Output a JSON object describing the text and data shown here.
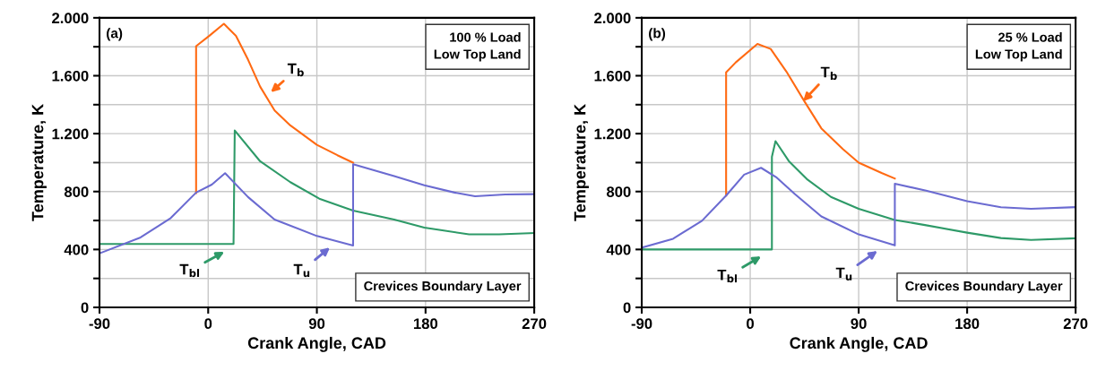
{
  "chart_data": [
    {
      "type": "line",
      "xlabel": "Crank Angle, CAD",
      "ylabel": "Temperature, K",
      "grid": true,
      "legend": false,
      "marker": "none",
      "line_style": "solid",
      "xlim": [
        -90,
        270
      ],
      "xticks": [
        -90,
        0,
        90,
        180,
        270
      ],
      "ylim": [
        0,
        2000
      ],
      "yticks": [
        0,
        {
          "value": 200,
          "label": null
        },
        400,
        {
          "value": 600,
          "label": null
        },
        800,
        {
          "value": 1000,
          "label": null
        },
        {
          "value": 1200,
          "label": "1.200"
        },
        {
          "value": 1400,
          "label": null
        },
        {
          "value": 1600,
          "label": "1.600"
        },
        {
          "value": 1800,
          "label": null
        },
        {
          "value": 2000,
          "label": "2.000"
        }
      ],
      "series": [
        {
          "color": "#ff6a13",
          "x": [
            -10,
            -10,
            1,
            13,
            23,
            33,
            43,
            55,
            68,
            90,
            107,
            120
          ],
          "values": [
            790,
            1804,
            1876,
            1959,
            1876,
            1711,
            1525,
            1360,
            1257,
            1123,
            1051,
            999
          ]
        },
        {
          "color": "#2e9a68",
          "x": [
            -90,
            21,
            22,
            43,
            68,
            92,
            120,
            154,
            179,
            216,
            241,
            270
          ],
          "values": [
            438,
            438,
            1222,
            1009,
            865,
            751,
            669,
            607,
            551,
            504,
            504,
            514
          ]
        },
        {
          "color": "#6b6bd1",
          "x": [
            -90,
            -56,
            -31,
            -10,
            3,
            14,
            33,
            55,
            90,
            120,
            120,
            154,
            179,
            204,
            221,
            246,
            270
          ],
          "values": [
            373,
            483,
            617,
            793,
            848,
            927,
            762,
            607,
            493,
            427,
            989,
            906,
            844,
            793,
            768,
            780,
            782
          ]
        }
      ],
      "annotations": [
        "T$_{b}$",
        "T$_{bl}$",
        "T$_{u}$",
        "(a)",
        "100 % Load\nLow Top Land",
        "Crevices Boundary Layer"
      ]
    },
    {
      "type": "line",
      "xlabel": "Crank Angle, CAD",
      "ylabel": "Temperature, K",
      "grid": true,
      "legend": false,
      "marker": "none",
      "line_style": "solid",
      "xlim": [
        -90,
        270
      ],
      "xticks": [
        -90,
        0,
        90,
        180,
        270
      ],
      "ylim": [
        0,
        2000
      ],
      "yticks": [
        0,
        {
          "value": 200,
          "label": null
        },
        400,
        {
          "value": 600,
          "label": null
        },
        800,
        {
          "value": 1000,
          "label": null
        },
        {
          "value": 1200,
          "label": "1.200"
        },
        {
          "value": 1400,
          "label": null
        },
        {
          "value": 1600,
          "label": "1.600"
        },
        {
          "value": 1800,
          "label": null
        },
        {
          "value": 2000,
          "label": "2.000"
        }
      ],
      "series": [
        {
          "color": "#ff6a13",
          "x": [
            -20,
            -20,
            -12,
            6,
            17,
            30,
            45,
            59,
            77,
            90,
            109,
            120
          ],
          "values": [
            772,
            1623,
            1692,
            1820,
            1785,
            1629,
            1423,
            1237,
            1092,
            1000,
            928,
            890
          ]
        },
        {
          "color": "#2e9a68",
          "x": [
            -90,
            18,
            18,
            21,
            32,
            47,
            67,
            90,
            120,
            146,
            180,
            208,
            233,
            270
          ],
          "values": [
            400,
            400,
            1040,
            1148,
            1011,
            886,
            763,
            681,
            604,
            567,
            516,
            479,
            466,
            477
          ]
        },
        {
          "color": "#6b6bd1",
          "x": [
            -90,
            -64,
            -40,
            -20,
            -5,
            9,
            22,
            37,
            59,
            90,
            120,
            120,
            146,
            180,
            208,
            233,
            270
          ],
          "values": [
            412,
            474,
            598,
            772,
            917,
            964,
            896,
            783,
            628,
            504,
            428,
            854,
            806,
            734,
            692,
            681,
            692
          ]
        }
      ],
      "annotations": [
        "T$_{b}$",
        "T$_{bl}$",
        "T$_{u}$",
        "(b)",
        "25 % Load\nLow Top Land",
        "Crevices Boundary Layer"
      ]
    }
  ]
}
